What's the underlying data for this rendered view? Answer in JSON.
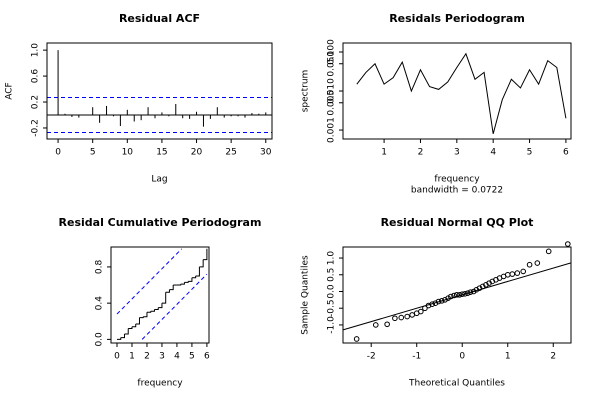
{
  "chart_data": [
    {
      "type": "acf",
      "title": "Residual ACF",
      "xlabel": "Lag",
      "ylabel": "ACF",
      "x": [
        0,
        1,
        2,
        3,
        4,
        5,
        6,
        7,
        8,
        9,
        10,
        11,
        12,
        13,
        14,
        15,
        16,
        17,
        18,
        19,
        20,
        21,
        22,
        23,
        24,
        25,
        26,
        27,
        28,
        29,
        30
      ],
      "values": [
        1.0,
        0.02,
        -0.03,
        -0.04,
        0.0,
        0.12,
        -0.12,
        0.14,
        -0.02,
        -0.17,
        0.08,
        -0.1,
        -0.08,
        0.12,
        -0.05,
        0.04,
        -0.02,
        0.17,
        -0.05,
        -0.06,
        0.05,
        -0.18,
        -0.06,
        0.12,
        -0.04,
        -0.02,
        -0.02,
        -0.04,
        0.03,
        0.02,
        0.04
      ],
      "conf_limit": 0.27,
      "color": "#000000",
      "conf_color": "#0000ff",
      "xlim": [
        -1.6,
        30.9
      ],
      "xticks": [
        0,
        5,
        10,
        15,
        20,
        25,
        30
      ],
      "ylim": [
        -0.37,
        1.11
      ],
      "yticks": [
        -0.2,
        0.2,
        0.6,
        {
          "value": 1,
          "label": "1.0"
        }
      ]
    },
    {
      "type": "periodogram",
      "title": "Residals Periodogram",
      "xlabel": "frequency",
      "subtitle": "bandwidth = 0.0722",
      "ylabel": "spectrum",
      "x": [
        0.25,
        0.5,
        0.75,
        1,
        1.25,
        1.5,
        1.75,
        2,
        2.25,
        2.5,
        2.75,
        3,
        3.25,
        3.5,
        3.75,
        4,
        4.25,
        4.5,
        4.75,
        5,
        5.25,
        5.5,
        5.75,
        6
      ],
      "values": [
        0.015,
        0.03,
        0.05,
        0.015,
        0.022,
        0.055,
        0.01,
        0.035,
        0.013,
        0.011,
        0.017,
        0.04,
        0.09,
        0.02,
        0.03,
        0.0008,
        0.006,
        0.02,
        0.012,
        0.035,
        0.015,
        0.06,
        0.04,
        0.002
      ],
      "color": "#000000",
      "log_y": true,
      "xlim": [
        -0.13,
        6.14
      ],
      "xticks": [
        1,
        2,
        3,
        4,
        5,
        6
      ],
      "ylim": [
        0.00059,
        0.17
      ],
      "yticks": [
        0.001,
        0.005,
        {
          "value": 0.01,
          "label": "0.010"
        },
        {
          "value": 0.05,
          "label": "0.050"
        },
        {
          "value": 0.1,
          "label": "0.100"
        }
      ]
    },
    {
      "type": "cumulative",
      "title": "Residal Cumulative Periodogram",
      "xlabel": "frequency",
      "x": [
        0.25,
        0.5,
        0.75,
        1,
        1.25,
        1.5,
        1.75,
        2,
        2.25,
        2.5,
        2.75,
        3,
        3.25,
        3.5,
        3.75,
        4,
        4.25,
        4.5,
        4.75,
        5,
        5.25,
        5.5,
        5.75,
        6
      ],
      "values": [
        0.02,
        0.06,
        0.12,
        0.14,
        0.17,
        0.24,
        0.25,
        0.3,
        0.31,
        0.33,
        0.35,
        0.4,
        0.52,
        0.55,
        0.6,
        0.6,
        0.61,
        0.63,
        0.64,
        0.68,
        0.7,
        0.8,
        0.88,
        1.0
      ],
      "band": 0.28,
      "color": "#000000",
      "band_color": "#0000ff",
      "xlim": [
        -0.4,
        6.14
      ],
      "xticks": [
        0,
        1,
        2,
        3,
        4,
        5,
        6
      ],
      "ylim": [
        -0.04,
        1.02
      ],
      "yticks": [
        {
          "value": 0,
          "label": "0.0"
        },
        0.4,
        0.8
      ]
    },
    {
      "type": "qq",
      "title": "Residual Normal QQ Plot",
      "xlabel": "Theoretical Quantiles",
      "ylabel": "Sample Quantiles",
      "x": [
        -2.32,
        -1.9,
        -1.65,
        -1.48,
        -1.34,
        -1.21,
        -1.1,
        -1.0,
        -0.91,
        -0.82,
        -0.74,
        -0.66,
        -0.59,
        -0.52,
        -0.45,
        -0.38,
        -0.31,
        -0.25,
        -0.18,
        -0.12,
        -0.06,
        0,
        0.06,
        0.12,
        0.18,
        0.25,
        0.31,
        0.38,
        0.45,
        0.52,
        0.59,
        0.66,
        0.74,
        0.82,
        0.91,
        1.0,
        1.1,
        1.21,
        1.34,
        1.48,
        1.65,
        1.9,
        2.32
      ],
      "values": [
        -1.42,
        -1.0,
        -0.98,
        -0.8,
        -0.78,
        -0.75,
        -0.7,
        -0.65,
        -0.6,
        -0.5,
        -0.42,
        -0.38,
        -0.35,
        -0.3,
        -0.28,
        -0.25,
        -0.2,
        -0.15,
        -0.12,
        -0.1,
        -0.1,
        -0.08,
        -0.07,
        -0.05,
        -0.02,
        0.0,
        0.05,
        0.1,
        0.15,
        0.2,
        0.25,
        0.3,
        0.35,
        0.4,
        0.45,
        0.5,
        0.52,
        0.55,
        0.6,
        0.8,
        0.85,
        1.2,
        1.42
      ],
      "qqline": {
        "intercept": -0.1,
        "slope": 0.4
      },
      "color": "#000000",
      "xlim": [
        -2.62,
        2.39
      ],
      "xticks": [
        -2,
        -1,
        0,
        1,
        2
      ],
      "ylim": [
        -1.54,
        1.33
      ],
      "yticks": [
        {
          "value": -1,
          "label": "-1.0"
        },
        -0.5,
        {
          "value": 0,
          "label": "0.0"
        },
        0.5,
        {
          "value": 1,
          "label": "1.0"
        }
      ]
    }
  ]
}
